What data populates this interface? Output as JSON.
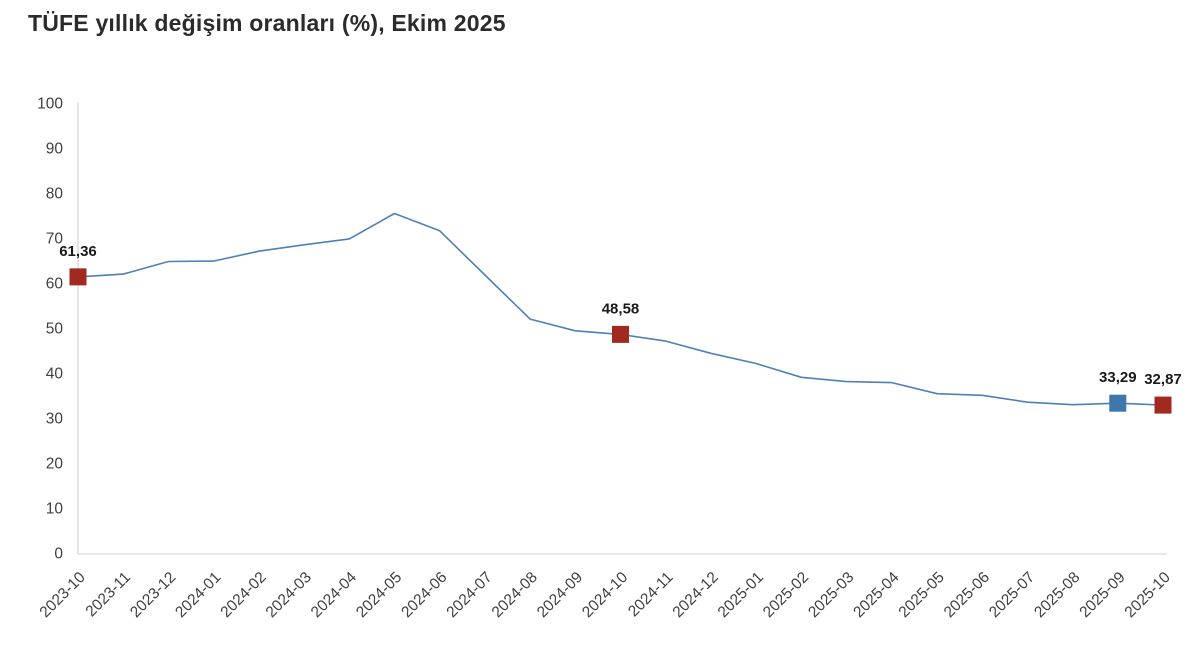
{
  "title": "TÜFE yıllık değişim oranları (%), Ekim 2025",
  "chart_data": {
    "type": "line",
    "title": "TÜFE yıllık değişim oranları (%), Ekim 2025",
    "xlabel": "",
    "ylabel": "",
    "ylim": [
      0,
      100
    ],
    "ytick_step": 10,
    "grid": false,
    "legend": "none",
    "x": [
      "2023-10",
      "2023-11",
      "2023-12",
      "2024-01",
      "2024-02",
      "2024-03",
      "2024-04",
      "2024-05",
      "2024-06",
      "2024-07",
      "2024-08",
      "2024-09",
      "2024-10",
      "2024-11",
      "2024-12",
      "2025-01",
      "2025-02",
      "2025-03",
      "2025-04",
      "2025-05",
      "2025-06",
      "2025-07",
      "2025-08",
      "2025-09",
      "2025-10"
    ],
    "values": [
      61.36,
      61.98,
      64.77,
      64.86,
      67.07,
      68.5,
      69.8,
      75.45,
      71.6,
      61.78,
      51.97,
      49.38,
      48.58,
      47.09,
      44.38,
      42.12,
      39.05,
      38.1,
      37.86,
      35.41,
      35.05,
      33.52,
      32.95,
      33.29,
      32.87
    ],
    "highlights": [
      {
        "x": "2023-10",
        "index": 0,
        "value": 61.36,
        "label": "61,36",
        "color": "#a2291f"
      },
      {
        "x": "2024-10",
        "index": 12,
        "value": 48.58,
        "label": "48,58",
        "color": "#a2291f"
      },
      {
        "x": "2025-09",
        "index": 23,
        "value": 33.29,
        "label": "33,29",
        "color": "#3f76ad"
      },
      {
        "x": "2025-10",
        "index": 24,
        "value": 32.87,
        "label": "32,87",
        "color": "#a2291f"
      }
    ],
    "colors": {
      "line": "#4e80b8",
      "axis": "#d9d9d9",
      "tick_text": "#404040",
      "point_label": "#1a1a1a",
      "marker_red": "#a2291f",
      "marker_blue": "#3f76ad"
    }
  }
}
